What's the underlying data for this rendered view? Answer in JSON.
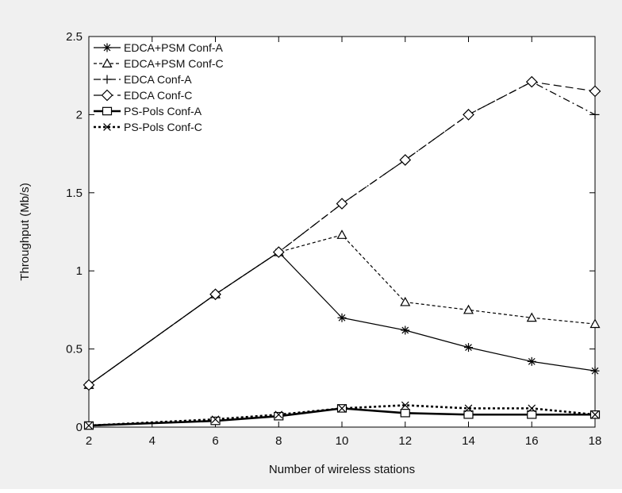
{
  "chart_data": {
    "type": "line",
    "title": "",
    "xlabel": "Number of wireless stations",
    "ylabel": "Throughput (Mb/s)",
    "xlim": [
      2,
      18
    ],
    "ylim": [
      0,
      2.5
    ],
    "xticks": [
      2,
      4,
      6,
      8,
      10,
      12,
      14,
      16,
      18
    ],
    "yticks": [
      0,
      0.5,
      1,
      1.5,
      2,
      2.5
    ],
    "ytick_labels": [
      "0",
      "0.5",
      "1",
      "1.5",
      "2",
      "2.5"
    ],
    "legend_position": "top-left",
    "grid": false,
    "series": [
      {
        "name": "EDCA+PSM Conf-A",
        "marker": "asterisk",
        "line": "solid-thin",
        "x": [
          2,
          6,
          8,
          10,
          12,
          14,
          16,
          18
        ],
        "y": [
          0.27,
          0.85,
          1.12,
          0.7,
          0.62,
          0.51,
          0.42,
          0.36
        ]
      },
      {
        "name": "EDCA+PSM Conf-C",
        "marker": "triangle",
        "line": "dashed",
        "x": [
          2,
          6,
          8,
          10,
          12,
          14,
          16,
          18
        ],
        "y": [
          0.27,
          0.85,
          1.12,
          1.23,
          0.8,
          0.75,
          0.7,
          0.66
        ]
      },
      {
        "name": "EDCA Conf-A",
        "marker": "plus",
        "line": "dashdot",
        "x": [
          2,
          6,
          8,
          10,
          12,
          14,
          16,
          18
        ],
        "y": [
          0.27,
          0.85,
          1.12,
          1.43,
          1.71,
          2.0,
          2.21,
          2.0
        ]
      },
      {
        "name": "EDCA Conf-C",
        "marker": "diamond",
        "line": "long-dashed",
        "x": [
          2,
          6,
          8,
          10,
          12,
          14,
          16,
          18
        ],
        "y": [
          0.27,
          0.85,
          1.12,
          1.43,
          1.71,
          2.0,
          2.21,
          2.15
        ]
      },
      {
        "name": "PS-Pols Conf-A",
        "marker": "square",
        "line": "solid-thick",
        "x": [
          2,
          6,
          8,
          10,
          12,
          14,
          16,
          18
        ],
        "y": [
          0.01,
          0.04,
          0.07,
          0.12,
          0.09,
          0.08,
          0.08,
          0.08
        ]
      },
      {
        "name": "PS-Pols Conf-C",
        "marker": "cross",
        "line": "dotted-thick",
        "x": [
          2,
          6,
          8,
          10,
          12,
          14,
          16,
          18
        ],
        "y": [
          0.01,
          0.05,
          0.08,
          0.12,
          0.14,
          0.12,
          0.12,
          0.08
        ]
      }
    ]
  }
}
